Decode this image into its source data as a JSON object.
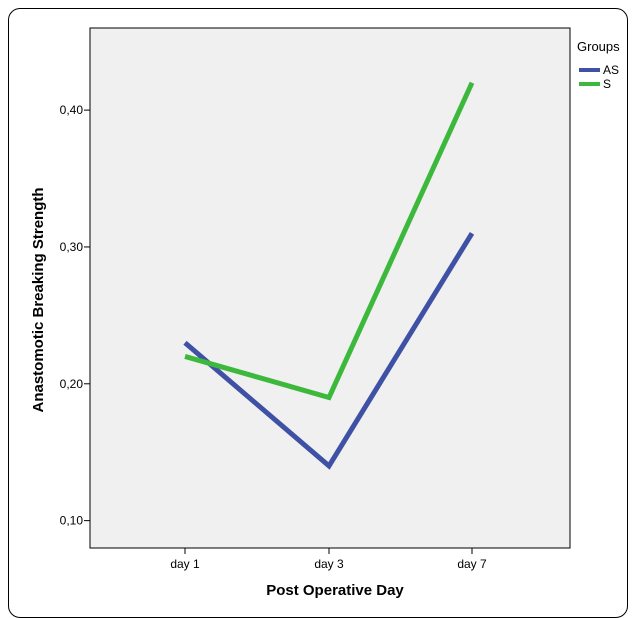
{
  "chart_data": {
    "type": "line",
    "title": "",
    "xlabel": "Post Operative Day",
    "ylabel": "Anastomotic Breaking Strength",
    "categories": [
      "day 1",
      "day 3",
      "day 7"
    ],
    "yticks": [
      0.1,
      0.2,
      0.3,
      0.4
    ],
    "ytick_labels": [
      "0,10",
      "0,20",
      "0,30",
      "0,40"
    ],
    "ylim": [
      0.08,
      0.46
    ],
    "grid": false,
    "legend": {
      "title": "Groups",
      "placement": "top-right-outside"
    },
    "series": [
      {
        "name": "AS",
        "color": "#3f51a5",
        "values": [
          0.23,
          0.14,
          0.31
        ]
      },
      {
        "name": "S",
        "color": "#3cb93c",
        "values": [
          0.22,
          0.19,
          0.42
        ]
      }
    ],
    "plot_background": "#f0f0f0"
  }
}
